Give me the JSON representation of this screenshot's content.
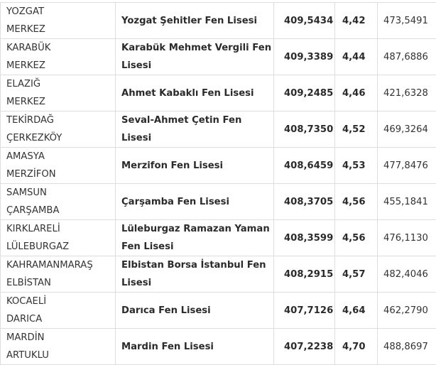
{
  "table": {
    "rows": [
      {
        "city": "YOZGAT",
        "district": "MERKEZ",
        "school": "Yozgat Şehitler Fen Lisesi",
        "score": "409,5434",
        "percentile": "4,42",
        "max": "473,5491"
      },
      {
        "city": "KARABÜK",
        "district": "MERKEZ",
        "school": "Karabük Mehmet Vergili Fen Lisesi",
        "score": "409,3389",
        "percentile": "4,44",
        "max": "487,6886"
      },
      {
        "city": "ELAZIĞ",
        "district": "MERKEZ",
        "school": "Ahmet Kabaklı Fen Lisesi",
        "score": "409,2485",
        "percentile": "4,46",
        "max": "421,6328"
      },
      {
        "city": "TEKİRDAĞ",
        "district": "ÇERKEZKÖY",
        "school": "Seval-Ahmet Çetin Fen Lisesi",
        "score": "408,7350",
        "percentile": "4,52",
        "max": "469,3264"
      },
      {
        "city": "AMASYA",
        "district": "MERZİFON",
        "school": "Merzifon Fen Lisesi",
        "score": "408,6459",
        "percentile": "4,53",
        "max": "477,8476"
      },
      {
        "city": "SAMSUN",
        "district": "ÇARŞAMBA",
        "school": "Çarşamba Fen Lisesi",
        "score": "408,3705",
        "percentile": "4,56",
        "max": "455,1841"
      },
      {
        "city": "KIRKLARELİ",
        "district": "LÜLEBURGAZ",
        "school": "Lüleburgaz Ramazan Yaman Fen Lisesi",
        "score": "408,3599",
        "percentile": "4,56",
        "max": "476,1130"
      },
      {
        "city": "KAHRAMANMARAŞ",
        "district": "ELBİSTAN",
        "school": "Elbistan Borsa İstanbul Fen Lisesi",
        "score": "408,2915",
        "percentile": "4,57",
        "max": "482,4046"
      },
      {
        "city": "KOCAELİ",
        "district": "DARICA",
        "school": "Darıca Fen Lisesi",
        "score": "407,7126",
        "percentile": "4,64",
        "max": "462,2790"
      },
      {
        "city": "MARDİN",
        "district": "ARTUKLU",
        "school": "Mardin Fen Lisesi",
        "score": "407,2238",
        "percentile": "4,70",
        "max": "488,8697"
      }
    ]
  }
}
